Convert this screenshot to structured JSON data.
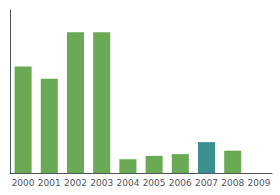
{
  "chart_data": {
    "type": "bar",
    "categories": [
      "2000",
      "2001",
      "2002",
      "2003",
      "2004",
      "2005",
      "2006",
      "2007",
      "2008",
      "2009"
    ],
    "values": [
      62,
      55,
      82,
      82,
      8,
      10,
      11,
      18,
      13,
      0
    ],
    "colors": [
      "#6aaa54",
      "#6aaa54",
      "#6aaa54",
      "#6aaa54",
      "#6aaa54",
      "#6aaa54",
      "#6aaa54",
      "#3a8f8f",
      "#6aaa54",
      "#6aaa54"
    ],
    "ylim": [
      0,
      95
    ],
    "yticks": [],
    "grid": false,
    "tick_labels": "x"
  }
}
